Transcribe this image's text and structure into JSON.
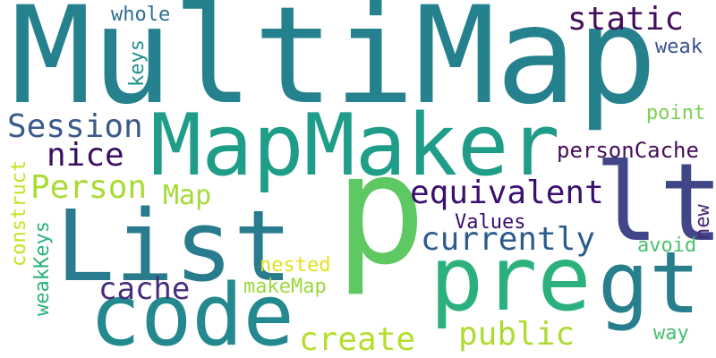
{
  "words": [
    {
      "id": "multimap",
      "text": "MultiMap",
      "color": "#26818e",
      "size": 150,
      "rot": 0
    },
    {
      "id": "mapmaker",
      "text": "MapMaker",
      "color": "#1f9d88",
      "size": 95,
      "rot": 0
    },
    {
      "id": "p",
      "text": "p",
      "color": "#5ec962",
      "size": 170,
      "rot": 0
    },
    {
      "id": "list",
      "text": "List",
      "color": "#297b8e",
      "size": 110,
      "rot": 0
    },
    {
      "id": "code",
      "text": "code",
      "color": "#23898e",
      "size": 95,
      "rot": 0
    },
    {
      "id": "lt",
      "text": "lt",
      "color": "#404688",
      "size": 120,
      "rot": 0
    },
    {
      "id": "pre",
      "text": "pre",
      "color": "#2cb17e",
      "size": 100,
      "rot": 0
    },
    {
      "id": "gt",
      "text": "gt",
      "color": "#277f8e",
      "size": 95,
      "rot": 0
    },
    {
      "id": "static",
      "text": "static",
      "color": "#440f5c",
      "size": 36,
      "rot": 0
    },
    {
      "id": "whole",
      "text": "whole",
      "color": "#2d6f8e",
      "size": 22,
      "rot": 0
    },
    {
      "id": "weak",
      "text": "weak",
      "color": "#3b528b",
      "size": 22,
      "rot": 0
    },
    {
      "id": "keys",
      "text": "keys",
      "color": "#21918c",
      "size": 22,
      "rot": -90
    },
    {
      "id": "session",
      "text": "Session",
      "color": "#3b5a8b",
      "size": 36,
      "rot": 0
    },
    {
      "id": "nice",
      "text": "nice",
      "color": "#3a0f61",
      "size": 36,
      "rot": 0
    },
    {
      "id": "point",
      "text": "point",
      "color": "#7ad151",
      "size": 22,
      "rot": 0
    },
    {
      "id": "personcache",
      "text": "personCache",
      "color": "#460b5a",
      "size": 24,
      "rot": 0
    },
    {
      "id": "person",
      "text": "Person",
      "color": "#a8db34",
      "size": 36,
      "rot": 0
    },
    {
      "id": "map",
      "text": "Map",
      "color": "#a5db36",
      "size": 30,
      "rot": 0
    },
    {
      "id": "equivalent",
      "text": "equivalent",
      "color": "#3b0f70",
      "size": 36,
      "rot": 0
    },
    {
      "id": "construct",
      "text": "construct",
      "color": "#c9e020",
      "size": 22,
      "rot": -90
    },
    {
      "id": "weakkeys",
      "text": "weakKeys",
      "color": "#2eb37c",
      "size": 22,
      "rot": -90
    },
    {
      "id": "values",
      "text": "Values",
      "color": "#3b0f70",
      "size": 22,
      "rot": 0
    },
    {
      "id": "new",
      "text": "new",
      "color": "#482575",
      "size": 22,
      "rot": -90
    },
    {
      "id": "currently",
      "text": "currently",
      "color": "#2c5c8e",
      "size": 36,
      "rot": 0
    },
    {
      "id": "avoid",
      "text": "avoid",
      "color": "#4ac16d",
      "size": 22,
      "rot": 0
    },
    {
      "id": "nested",
      "text": "nested",
      "color": "#e1e11f",
      "size": 22,
      "rot": 0
    },
    {
      "id": "cache",
      "text": "cache",
      "color": "#472d7b",
      "size": 34,
      "rot": 0
    },
    {
      "id": "makemap",
      "text": "makeMap",
      "color": "#9bd93c",
      "size": 22,
      "rot": 0
    },
    {
      "id": "create",
      "text": "create",
      "color": "#b5de2b",
      "size": 36,
      "rot": 0
    },
    {
      "id": "public",
      "text": "public",
      "color": "#addc30",
      "size": 36,
      "rot": 0
    },
    {
      "id": "way",
      "text": "way",
      "color": "#44bf70",
      "size": 22,
      "rot": 0
    }
  ]
}
